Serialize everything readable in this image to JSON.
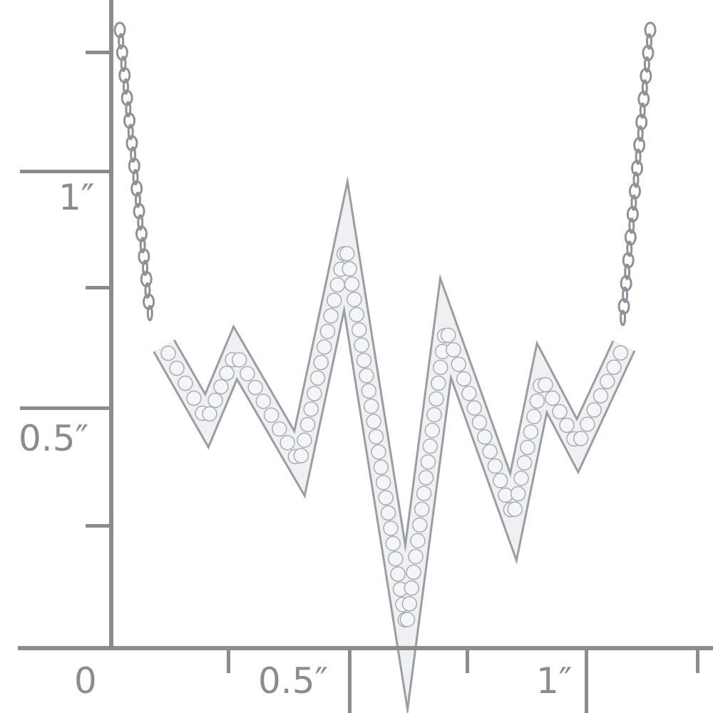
{
  "ruler": {
    "color": "#8c8c8c",
    "vertical_labels": [
      "1″",
      "0.5″"
    ],
    "horizontal_labels": [
      "0",
      "0.5″",
      "1″"
    ]
  },
  "product": {
    "subject": "heartbeat-pendant-necklace",
    "metal_color": "#c8cacc",
    "stone_color": "#f4f5f6"
  }
}
